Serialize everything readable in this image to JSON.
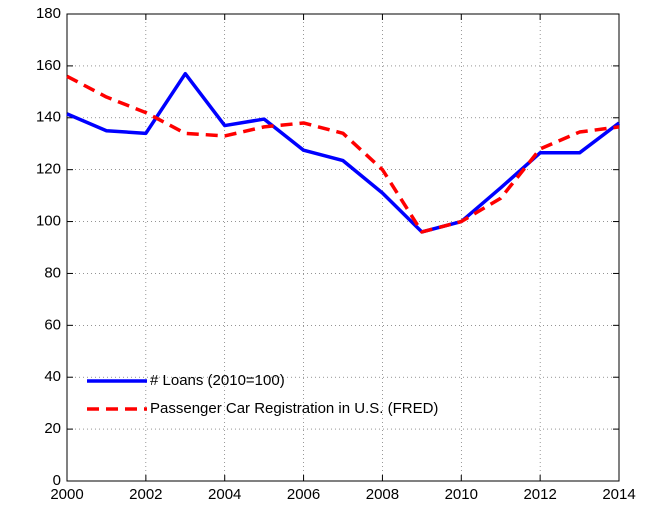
{
  "chart_data": {
    "type": "line",
    "x": [
      2000,
      2001,
      2002,
      2003,
      2004,
      2005,
      2006,
      2007,
      2008,
      2009,
      2010,
      2011,
      2012,
      2013,
      2014
    ],
    "series": [
      {
        "name": "# Loans (2010=100)",
        "color": "#0000ff",
        "dash": "solid",
        "values": [
          141.5,
          135,
          134,
          157,
          137,
          139.5,
          127.5,
          123.5,
          111,
          96,
          100,
          113,
          126.5,
          126.5,
          138
        ]
      },
      {
        "name": "Passenger Car Registration in U.S. (FRED)",
        "color": "#ff0000",
        "dash": "dashed",
        "values": [
          156,
          148,
          142,
          134,
          133,
          136.5,
          138,
          134,
          120,
          96,
          100,
          109,
          128,
          134.5,
          136.5
        ]
      }
    ],
    "xlim": [
      2000,
      2014
    ],
    "xticks": [
      2000,
      2002,
      2004,
      2006,
      2008,
      2010,
      2012,
      2014
    ],
    "ylim": [
      0,
      180
    ],
    "yticks": [
      0,
      20,
      40,
      60,
      80,
      100,
      120,
      140,
      160,
      180
    ],
    "grid": true,
    "legend": "lower left"
  }
}
